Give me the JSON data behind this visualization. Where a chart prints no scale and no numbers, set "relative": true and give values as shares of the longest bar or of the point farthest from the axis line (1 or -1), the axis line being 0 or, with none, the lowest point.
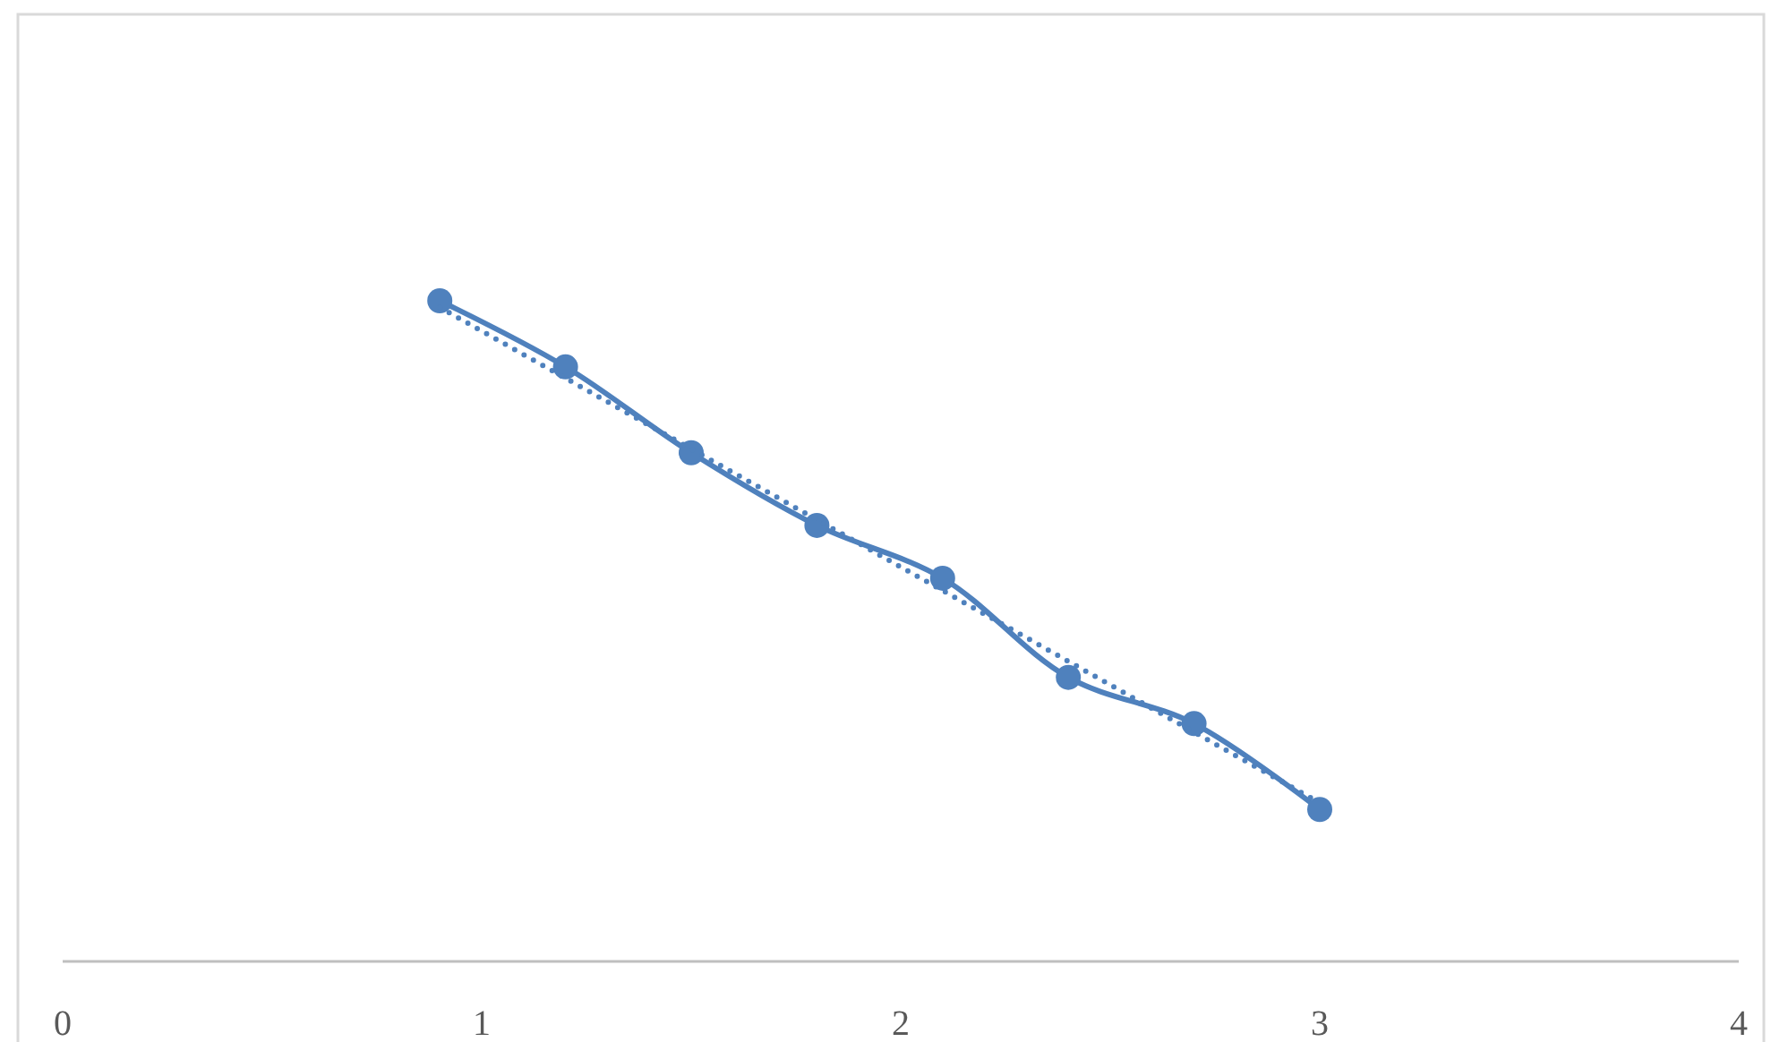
{
  "chart_data": {
    "type": "line",
    "relative": true,
    "xlim": [
      0,
      4
    ],
    "xticks": [
      0,
      1,
      2,
      3,
      4
    ],
    "grid": false,
    "series": [
      {
        "color": "#4f81bd",
        "marker": "circle",
        "line_style": "solid",
        "x": [
          0.9,
          1.2,
          1.5,
          1.8,
          2.1,
          2.4,
          2.7,
          3.0
        ],
        "values": [
          1,
          0.9,
          0.77,
          0.66,
          0.58,
          0.43,
          0.36,
          0.23
        ]
      },
      {
        "color": "#4f81bd",
        "marker": "none",
        "line_style": "dotted",
        "x": [
          0.9,
          3.0
        ],
        "values": [
          0.99,
          0.24
        ]
      }
    ]
  }
}
